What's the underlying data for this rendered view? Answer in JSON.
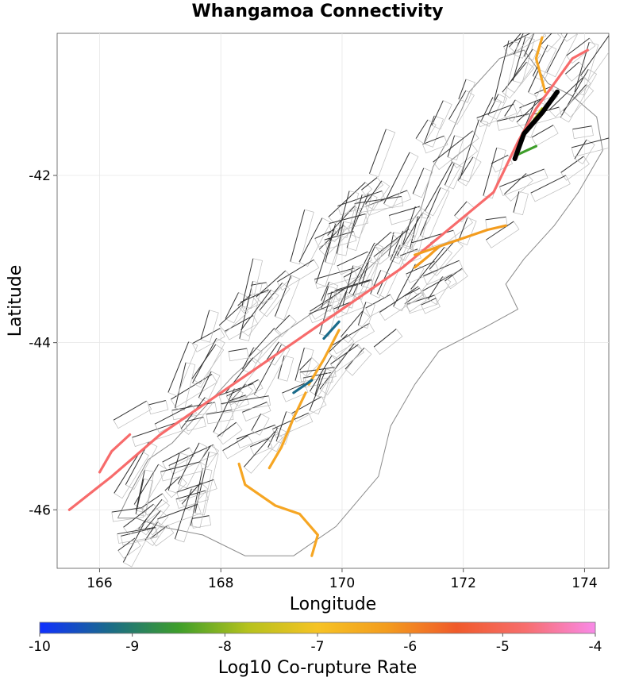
{
  "title": "Whangamoa Connectivity",
  "map": {
    "xlabel": "Longitude",
    "ylabel": "Latitude",
    "x_ticks": [
      "166",
      "168",
      "170",
      "172",
      "174"
    ],
    "y_ticks": [
      "-42",
      "-44",
      "-46"
    ],
    "x_range": [
      165.3,
      174.4
    ],
    "y_range": [
      -46.7,
      -40.3
    ]
  },
  "colorbar": {
    "label": "Log10 Co-rupture Rate",
    "ticks": [
      "-10",
      "-9",
      "-8",
      "-7",
      "-6",
      "-5",
      "-4"
    ],
    "range": [
      -10,
      -4
    ],
    "colors": [
      "#1030ff",
      "#1a6b8a",
      "#3e9e2a",
      "#b6c21d",
      "#f6c324",
      "#f39c1e",
      "#f05a2a",
      "#f76e6e",
      "#f88ae8"
    ]
  },
  "source_fault": {
    "name": "Whangamoa",
    "color": "#000000"
  },
  "ruptures": [
    {
      "color": "#f76b6b",
      "points": [
        [
          165.5,
          -46.0
        ],
        [
          166.2,
          -45.6
        ],
        [
          167.0,
          -45.1
        ],
        [
          168.0,
          -44.6
        ],
        [
          169.0,
          -44.1
        ],
        [
          170.0,
          -43.6
        ],
        [
          171.0,
          -43.1
        ],
        [
          172.0,
          -42.5
        ],
        [
          172.5,
          -42.2
        ],
        [
          172.9,
          -41.6
        ],
        [
          173.2,
          -41.2
        ],
        [
          173.5,
          -40.9
        ],
        [
          173.8,
          -40.6
        ],
        [
          174.05,
          -40.5
        ]
      ]
    },
    {
      "color": "#f76b6b",
      "points": [
        [
          166.0,
          -45.55
        ],
        [
          166.2,
          -45.3
        ],
        [
          166.5,
          -45.1
        ]
      ]
    },
    {
      "color": "#f39c1e",
      "points": [
        [
          171.2,
          -42.95
        ],
        [
          171.6,
          -42.85
        ],
        [
          172.0,
          -42.75
        ],
        [
          172.4,
          -42.65
        ],
        [
          172.7,
          -42.6
        ]
      ]
    },
    {
      "color": "#f39c1e",
      "points": [
        [
          171.2,
          -43.1
        ],
        [
          171.45,
          -42.95
        ],
        [
          171.6,
          -42.85
        ]
      ]
    },
    {
      "color": "#f6a623",
      "points": [
        [
          173.3,
          -40.35
        ],
        [
          173.2,
          -40.6
        ],
        [
          173.35,
          -41.0
        ]
      ]
    },
    {
      "color": "#f6a623",
      "points": [
        [
          169.95,
          -43.85
        ],
        [
          169.7,
          -44.2
        ],
        [
          169.45,
          -44.5
        ]
      ]
    },
    {
      "color": "#f6a623",
      "points": [
        [
          169.4,
          -44.6
        ],
        [
          169.2,
          -44.9
        ],
        [
          169.0,
          -45.25
        ],
        [
          168.8,
          -45.5
        ]
      ]
    },
    {
      "color": "#f6a623",
      "points": [
        [
          168.3,
          -45.45
        ],
        [
          168.4,
          -45.7
        ],
        [
          168.9,
          -45.95
        ],
        [
          169.3,
          -46.05
        ],
        [
          169.6,
          -46.3
        ],
        [
          169.5,
          -46.55
        ]
      ]
    },
    {
      "color": "#1a6b8a",
      "points": [
        [
          169.95,
          -43.75
        ],
        [
          169.7,
          -43.95
        ]
      ]
    },
    {
      "color": "#1a6b8a",
      "points": [
        [
          169.2,
          -44.6
        ],
        [
          169.5,
          -44.45
        ]
      ]
    },
    {
      "color": "#3e9e2a",
      "points": [
        [
          172.9,
          -41.75
        ],
        [
          173.2,
          -41.65
        ]
      ]
    },
    {
      "color": "#b6c21d",
      "points": [
        [
          173.0,
          -41.5
        ],
        [
          173.3,
          -41.2
        ]
      ]
    }
  ],
  "whangamoa_trace": [
    [
      172.85,
      -41.8
    ],
    [
      173.0,
      -41.5
    ],
    [
      173.3,
      -41.25
    ],
    [
      173.55,
      -41.0
    ]
  ]
}
